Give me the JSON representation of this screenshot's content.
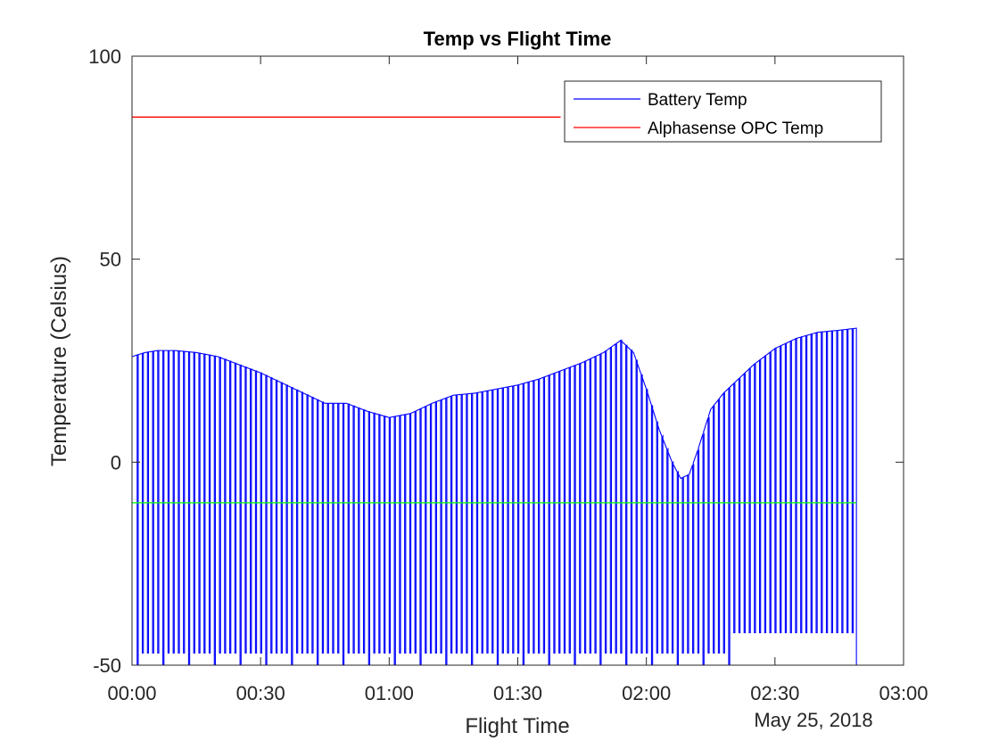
{
  "chart_data": {
    "type": "line",
    "title": "Temp vs Flight Time",
    "xlabel": "Flight Time",
    "ylabel": "Temperature (Celsius)",
    "date_label": "May 25, 2018",
    "xlim": [
      "00:00",
      "03:00"
    ],
    "ylim": [
      -50,
      100
    ],
    "xticks": [
      "00:00",
      "00:30",
      "01:00",
      "01:30",
      "02:00",
      "02:30",
      "03:00"
    ],
    "yticks": [
      -50,
      0,
      50,
      100
    ],
    "grid": false,
    "legend_position": "top-right",
    "x_unit": "minutes",
    "series": [
      {
        "name": "Battery Temp",
        "color": "#0000ff",
        "dropout_value": -50,
        "envelope_x": [
          0,
          3,
          6,
          10,
          15,
          20,
          25,
          30,
          35,
          40,
          45,
          50,
          55,
          60,
          65,
          70,
          75,
          80,
          85,
          90,
          95,
          100,
          105,
          110,
          114,
          117,
          120,
          123,
          126,
          128,
          130,
          132,
          135,
          138,
          142,
          145,
          150,
          155,
          160,
          165,
          169
        ],
        "envelope_y": [
          26,
          27,
          27.5,
          27.5,
          27,
          26,
          24,
          22,
          19.5,
          17,
          14.5,
          14.5,
          12.5,
          11,
          12,
          14.5,
          16.5,
          17,
          18,
          19,
          20.5,
          22.5,
          24.5,
          27,
          30,
          27,
          18,
          8,
          0,
          -4,
          -3,
          3,
          13,
          17,
          21,
          24,
          28,
          30.5,
          32,
          32.5,
          33
        ]
      },
      {
        "name": "Alphasense OPC Temp",
        "color": "#ff0000",
        "x": [
          0,
          100
        ],
        "y": [
          85,
          85
        ]
      },
      {
        "color": "#00ff00",
        "x": [
          0,
          169
        ],
        "y": [
          -10,
          -10
        ]
      }
    ]
  }
}
